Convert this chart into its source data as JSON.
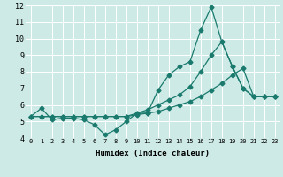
{
  "xlabel": "Humidex (Indice chaleur)",
  "bg_color": "#ceeae6",
  "grid_color": "#ffffff",
  "line_color": "#1a7a6e",
  "line1_x": [
    0,
    1,
    2,
    3,
    4,
    5,
    6,
    7,
    8,
    9,
    10,
    11,
    12,
    13,
    14,
    15,
    16,
    17,
    18,
    19,
    20,
    21,
    22,
    23
  ],
  "line1_y": [
    5.3,
    5.8,
    5.1,
    5.2,
    5.2,
    5.1,
    4.8,
    4.2,
    4.5,
    5.0,
    5.5,
    5.5,
    6.9,
    7.8,
    8.3,
    8.6,
    10.5,
    11.9,
    9.8,
    8.3,
    7.0,
    6.5,
    6.5,
    6.5
  ],
  "line2_x": [
    0,
    1,
    2,
    3,
    4,
    5,
    6,
    7,
    8,
    9,
    10,
    11,
    12,
    13,
    14,
    15,
    16,
    17,
    18,
    19,
    20,
    21,
    22,
    23
  ],
  "line2_y": [
    5.3,
    5.3,
    5.3,
    5.3,
    5.3,
    5.3,
    5.3,
    5.3,
    5.3,
    5.3,
    5.5,
    5.7,
    6.0,
    6.3,
    6.6,
    7.1,
    8.0,
    9.0,
    9.8,
    8.3,
    7.0,
    6.5,
    6.5,
    6.5
  ],
  "line3_x": [
    0,
    1,
    2,
    3,
    4,
    5,
    6,
    7,
    8,
    9,
    10,
    11,
    12,
    13,
    14,
    15,
    16,
    17,
    18,
    19,
    20,
    21,
    22,
    23
  ],
  "line3_y": [
    5.3,
    5.3,
    5.3,
    5.3,
    5.3,
    5.3,
    5.3,
    5.3,
    5.3,
    5.3,
    5.4,
    5.5,
    5.6,
    5.8,
    6.0,
    6.2,
    6.5,
    6.9,
    7.3,
    7.8,
    8.2,
    6.5,
    6.5,
    6.5
  ],
  "ylim": [
    4,
    12
  ],
  "xlim": [
    -0.5,
    23.5
  ],
  "yticks": [
    4,
    5,
    6,
    7,
    8,
    9,
    10,
    11,
    12
  ],
  "xticks": [
    0,
    1,
    2,
    3,
    4,
    5,
    6,
    7,
    8,
    9,
    10,
    11,
    12,
    13,
    14,
    15,
    16,
    17,
    18,
    19,
    20,
    21,
    22,
    23
  ],
  "marker": "D",
  "marker_size": 2.5,
  "linewidth": 0.9,
  "xlabel_fontsize": 6.5,
  "tick_fontsize_x": 5.0,
  "tick_fontsize_y": 6.0
}
